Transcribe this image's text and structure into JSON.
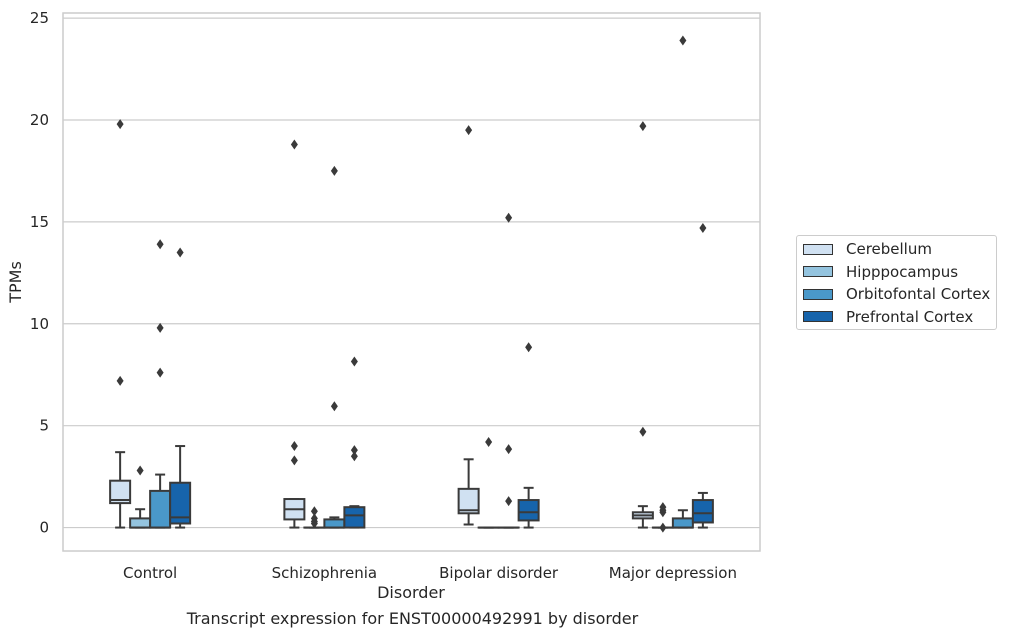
{
  "chart_data": {
    "type": "box",
    "title": "",
    "caption": "Transcript expression for ENST00000492991 by disorder",
    "xlabel": "Disorder",
    "ylabel": "TPMs",
    "categories": [
      "Control",
      "Schizophrenia",
      "Bipolar disorder",
      "Major depression"
    ],
    "ylim": [
      -1.15,
      25.25
    ],
    "yticks": [
      0,
      5,
      10,
      15,
      20,
      25
    ],
    "grid": "horizontal",
    "legend_position": "right",
    "series": [
      {
        "name": "Cerebellum",
        "color": "#d0e1f2",
        "boxes": [
          {
            "whislo": 0.0,
            "q1": 1.2,
            "med": 1.35,
            "q3": 2.3,
            "whishi": 3.7,
            "fliers": [
              19.8,
              7.2
            ]
          },
          {
            "whislo": 0.0,
            "q1": 0.4,
            "med": 0.9,
            "q3": 1.4,
            "whishi": 1.4,
            "fliers": [
              18.8,
              4.0,
              3.3
            ]
          },
          {
            "whislo": 0.15,
            "q1": 0.7,
            "med": 0.85,
            "q3": 1.9,
            "whishi": 3.35,
            "fliers": [
              19.5
            ]
          },
          {
            "whislo": 0.0,
            "q1": 0.45,
            "med": 0.6,
            "q3": 0.75,
            "whishi": 1.05,
            "fliers": [
              19.7,
              4.7
            ]
          }
        ]
      },
      {
        "name": "Hipppocampus",
        "color": "#94c4df",
        "boxes": [
          {
            "whislo": 0.0,
            "q1": 0.0,
            "med": 0.0,
            "q3": 0.45,
            "whishi": 0.9,
            "fliers": [
              2.8
            ]
          },
          {
            "whislo": 0.0,
            "q1": 0.0,
            "med": 0.0,
            "q3": 0.0,
            "whishi": 0.0,
            "fliers": [
              0.8,
              0.45,
              0.3,
              0.2
            ]
          },
          {
            "whislo": 0.0,
            "q1": 0.0,
            "med": 0.0,
            "q3": 0.0,
            "whishi": 0.0,
            "fliers": [
              4.2
            ]
          },
          {
            "whislo": 0.0,
            "q1": 0.0,
            "med": 0.0,
            "q3": 0.0,
            "whishi": 0.0,
            "fliers": [
              1.0,
              0.85,
              0.75,
              0.0
            ]
          }
        ]
      },
      {
        "name": "Orbitofontal Cortex",
        "color": "#4a98c9",
        "boxes": [
          {
            "whislo": 0.0,
            "q1": 0.0,
            "med": 0.0,
            "q3": 1.8,
            "whishi": 2.6,
            "fliers": [
              13.9,
              9.8,
              7.6
            ]
          },
          {
            "whislo": 0.0,
            "q1": 0.0,
            "med": 0.0,
            "q3": 0.4,
            "whishi": 0.5,
            "fliers": [
              17.5,
              5.95
            ]
          },
          {
            "whislo": 0.0,
            "q1": 0.0,
            "med": 0.0,
            "q3": 0.0,
            "whishi": 0.0,
            "fliers": [
              15.2,
              3.85,
              1.3
            ]
          },
          {
            "whislo": 0.0,
            "q1": 0.0,
            "med": 0.0,
            "q3": 0.45,
            "whishi": 0.85,
            "fliers": [
              23.9
            ]
          }
        ]
      },
      {
        "name": "Prefrontal Cortex",
        "color": "#1764ab",
        "boxes": [
          {
            "whislo": 0.0,
            "q1": 0.2,
            "med": 0.5,
            "q3": 2.2,
            "whishi": 4.0,
            "fliers": [
              13.5
            ]
          },
          {
            "whislo": 0.0,
            "q1": 0.0,
            "med": 0.6,
            "q3": 1.0,
            "whishi": 1.05,
            "fliers": [
              8.15,
              3.8,
              3.5
            ]
          },
          {
            "whislo": 0.0,
            "q1": 0.35,
            "med": 0.75,
            "q3": 1.35,
            "whishi": 1.95,
            "fliers": [
              8.85
            ]
          },
          {
            "whislo": 0.0,
            "q1": 0.25,
            "med": 0.7,
            "q3": 1.35,
            "whishi": 1.7,
            "fliers": [
              14.7
            ]
          }
        ]
      }
    ]
  }
}
